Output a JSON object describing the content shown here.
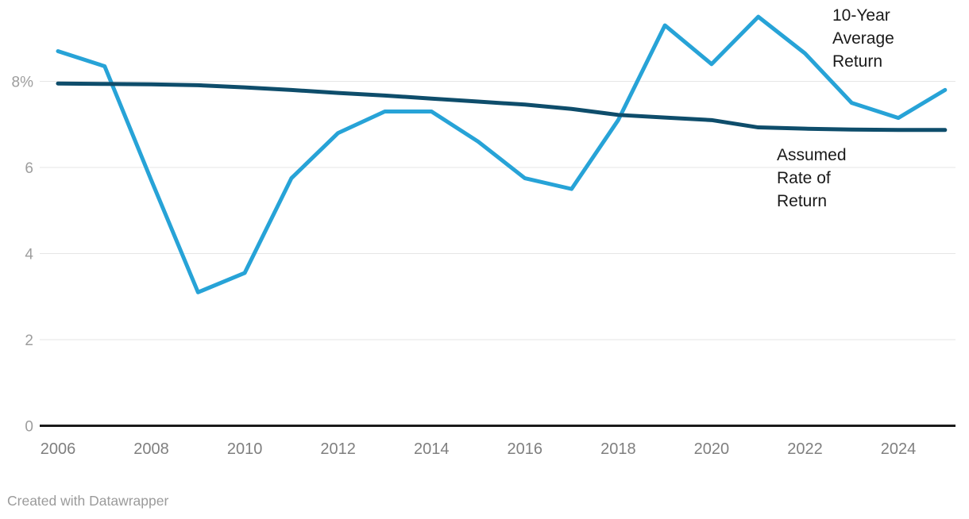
{
  "footer": {
    "text": "Created with Datawrapper"
  },
  "colors": {
    "background": "#ffffff",
    "grid": "#e6e6e6",
    "axis_baseline": "#1a1a1a",
    "y_tick_text": "#9d9d9d",
    "x_tick_text": "#7f7f7f",
    "annotation_text": "#1a1a1a",
    "footer_text": "#9b9b9b"
  },
  "chart_data": {
    "type": "line",
    "x": [
      2006,
      2007,
      2008,
      2009,
      2010,
      2011,
      2012,
      2013,
      2014,
      2015,
      2016,
      2017,
      2018,
      2019,
      2020,
      2021,
      2022,
      2023,
      2024,
      2025
    ],
    "series": [
      {
        "name": "10-Year Average Return",
        "color": "#27a3d7",
        "values": [
          8.7,
          8.35,
          5.7,
          3.1,
          3.55,
          5.75,
          6.8,
          7.3,
          7.3,
          6.6,
          5.75,
          5.5,
          7.1,
          9.3,
          8.4,
          9.5,
          8.65,
          7.5,
          7.15,
          7.8
        ]
      },
      {
        "name": "Assumed Rate of Return",
        "color": "#0e4d6b",
        "values": [
          7.95,
          7.94,
          7.93,
          7.91,
          7.86,
          7.8,
          7.73,
          7.67,
          7.6,
          7.53,
          7.46,
          7.36,
          7.22,
          7.16,
          7.1,
          6.93,
          6.9,
          6.88,
          6.87,
          6.87
        ]
      }
    ],
    "x_ticks": [
      2006,
      2008,
      2010,
      2012,
      2014,
      2016,
      2018,
      2020,
      2022,
      2024
    ],
    "y_ticks": [
      {
        "value": 0,
        "label": "0"
      },
      {
        "value": 2,
        "label": "2"
      },
      {
        "value": 4,
        "label": "4"
      },
      {
        "value": 6,
        "label": "6"
      },
      {
        "value": 8,
        "label": "8%"
      }
    ],
    "xlim": [
      2006,
      2025
    ],
    "ylim": [
      0,
      9.9
    ],
    "grid": true,
    "legend_position": "direct-labels-right",
    "annotations": [
      {
        "id": "ten-year-average-return-label",
        "lines": [
          "10-Year",
          "Average",
          "Return"
        ],
        "x": 1048,
        "y": 5
      },
      {
        "id": "assumed-rate-of-return-label",
        "lines": [
          "Assumed",
          "Rate of",
          "Return"
        ],
        "x": 978,
        "y": 181
      }
    ]
  }
}
